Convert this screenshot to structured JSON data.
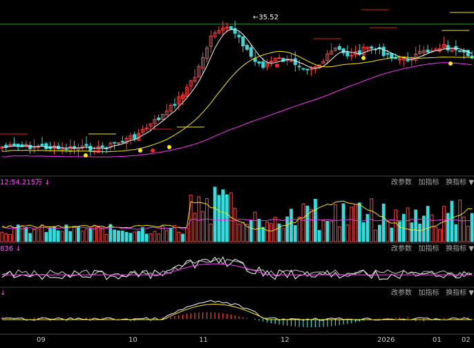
{
  "colors": {
    "background": "#000000",
    "bull": "#ff4444",
    "bear": "#33dddd",
    "ma_short": "#ffffff",
    "ma_mid": "#ffee00",
    "ma_long": "#ff33ff",
    "threshold": "#22aa22",
    "signal_red": "#ff2222",
    "signal_yellow": "#ffee00",
    "resistance": "#dd2222",
    "support": "#ffee00",
    "grid": "#444444"
  },
  "price_panel": {
    "high_label": "35.52",
    "high_arrow": "←"
  },
  "volume_panel": {
    "header": "12:54.215万",
    "header_arrow": "↓"
  },
  "macd_panel": {
    "header": "836",
    "header_arrow": "↓"
  },
  "kdj_panel": {
    "header_arrow": "↓"
  },
  "toolbar": {
    "change_params": "改参数",
    "add_indicator": "加指标",
    "swap_indicator": "换指标"
  },
  "x_axis": {
    "ticks": [
      "09",
      "10",
      "11",
      "12",
      "2026",
      "01",
      "02"
    ]
  },
  "chart_data": {
    "type": "candlestick",
    "price_high": 35.52,
    "candles": [],
    "panels": [
      "price",
      "volume",
      "macd",
      "kdj"
    ]
  }
}
